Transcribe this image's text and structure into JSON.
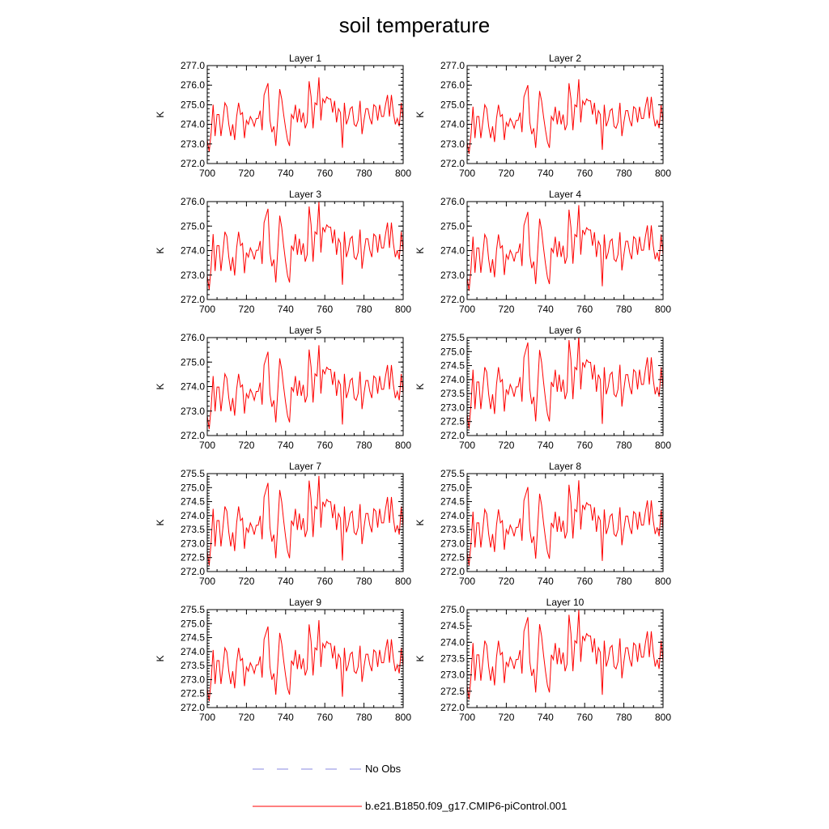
{
  "title": "soil temperature",
  "chart_data": {
    "type": "line",
    "xlabel": "",
    "ylabel": "K",
    "xlim": [
      700,
      800
    ],
    "xticks": [
      "700",
      "720",
      "740",
      "760",
      "780",
      "800"
    ],
    "x_start": 700,
    "x_step": 1,
    "base_series": [
      273.2,
      272.6,
      273.6,
      275.0,
      273.4,
      274.5,
      274.5,
      273.4,
      274.2,
      275.1,
      274.9,
      274.0,
      273.4,
      274.0,
      273.2,
      274.4,
      275.1,
      274.5,
      274.6,
      273.3,
      274.2,
      274.0,
      274.4,
      274.2,
      273.9,
      274.3,
      274.3,
      274.7,
      273.7,
      275.5,
      275.8,
      276.1,
      274.2,
      273.6,
      273.9,
      272.9,
      274.3,
      275.8,
      275.3,
      274.5,
      273.8,
      273.2,
      272.9,
      274.5,
      274.3,
      275.0,
      274.1,
      274.8,
      274.1,
      274.6,
      273.8,
      274.1,
      276.2,
      275.4,
      273.8,
      275.1,
      275.0,
      276.4,
      274.2,
      275.3,
      275.1,
      275.4,
      275.3,
      275.3,
      274.6,
      275.2,
      274.1,
      274.8,
      274.6,
      272.8,
      275.1,
      274.0,
      274.3,
      274.8,
      274.9,
      274.0,
      273.9,
      274.2,
      275.2,
      273.5,
      274.2,
      274.8,
      274.8,
      274.3,
      274.0,
      275.0,
      274.9,
      274.2,
      275.0,
      274.4,
      274.4,
      275.0,
      275.5,
      274.4,
      275.5,
      274.6,
      274.0,
      274.3,
      273.9,
      275.1,
      274.2
    ],
    "panels": [
      {
        "title": "Layer 1",
        "ylim": [
          272.0,
          277.0
        ],
        "yticks": [
          "272.0",
          "273.0",
          "274.0",
          "275.0",
          "276.0",
          "277.0"
        ],
        "scale": 1.0,
        "offset": 0.0
      },
      {
        "title": "Layer 2",
        "ylim": [
          272.0,
          277.0
        ],
        "yticks": [
          "272.0",
          "273.0",
          "274.0",
          "275.0",
          "276.0",
          "277.0"
        ],
        "scale": 1.0,
        "offset": -0.1
      },
      {
        "title": "Layer 3",
        "ylim": [
          272.0,
          276.0
        ],
        "yticks": [
          "272.0",
          "273.0",
          "274.0",
          "275.0",
          "276.0"
        ],
        "scale": 0.94,
        "offset": -0.28
      },
      {
        "title": "Layer 4",
        "ylim": [
          272.0,
          276.0
        ],
        "yticks": [
          "272.0",
          "273.0",
          "274.0",
          "275.0",
          "276.0"
        ],
        "scale": 0.92,
        "offset": -0.37
      },
      {
        "title": "Layer 5",
        "ylim": [
          272.0,
          276.0
        ],
        "yticks": [
          "272.0",
          "273.0",
          "274.0",
          "275.0",
          "276.0"
        ],
        "scale": 0.9,
        "offset": -0.49
      },
      {
        "title": "Layer 6",
        "ylim": [
          272.0,
          275.5
        ],
        "yticks": [
          "272.0",
          "272.5",
          "273.0",
          "273.5",
          "274.0",
          "274.5",
          "275.0",
          "275.5"
        ],
        "scale": 0.88,
        "offset": -0.55
      },
      {
        "title": "Layer 7",
        "ylim": [
          272.0,
          275.5
        ],
        "yticks": [
          "272.0",
          "272.5",
          "273.0",
          "273.5",
          "274.0",
          "274.5",
          "275.0",
          "275.5"
        ],
        "scale": 0.84,
        "offset": -0.63
      },
      {
        "title": "Layer 8",
        "ylim": [
          272.0,
          275.5
        ],
        "yticks": [
          "272.0",
          "272.5",
          "273.0",
          "273.5",
          "274.0",
          "274.5",
          "275.0",
          "275.5"
        ],
        "scale": 0.8,
        "offset": -0.7
      },
      {
        "title": "Layer 9",
        "ylim": [
          272.0,
          275.5
        ],
        "yticks": [
          "272.0",
          "272.5",
          "273.0",
          "273.5",
          "274.0",
          "274.5",
          "275.0",
          "275.5"
        ],
        "scale": 0.76,
        "offset": -0.75
      },
      {
        "title": "Layer 10",
        "ylim": [
          272.0,
          275.0
        ],
        "yticks": [
          "272.0",
          "272.5",
          "273.0",
          "273.5",
          "274.0",
          "274.5",
          "275.0"
        ],
        "scale": 0.72,
        "offset": -0.8
      }
    ],
    "legend": [
      {
        "label": "No Obs",
        "color": "#8a8ae0",
        "style": "dashed"
      },
      {
        "label": "b.e21.B1850.f09_g17.CMIP6-piControl.001",
        "color": "#ff0000",
        "style": "solid"
      }
    ],
    "legend_position": "bottom-center",
    "series_color": "#ff0000"
  }
}
